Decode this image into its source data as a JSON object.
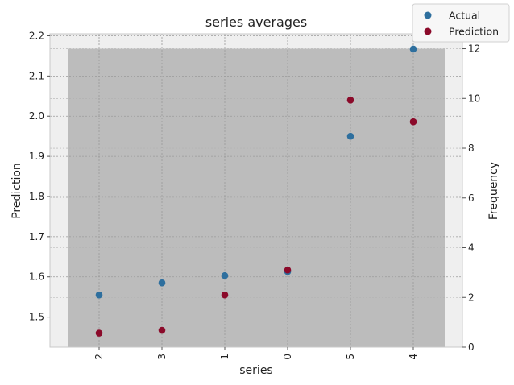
{
  "chart_data": {
    "type": "scatter",
    "title": "series averages",
    "xlabel": "series",
    "ylabel": "Prediction",
    "y2label": "Frequency",
    "categories": [
      "2",
      "3",
      "1",
      "0",
      "5",
      "4"
    ],
    "ylim": [
      1.425,
      2.205
    ],
    "yticks": [
      "1.5",
      "1.6",
      "1.7",
      "1.8",
      "1.9",
      "2.0",
      "2.1",
      "2.2"
    ],
    "y2lim": [
      0,
      12.6
    ],
    "y2ticks": [
      "0",
      "2",
      "4",
      "6",
      "8",
      "10",
      "12"
    ],
    "histogram_frequency": 12,
    "grid": true,
    "legend_position": "top-right",
    "series": [
      {
        "name": "Actual",
        "color": "#2e6f9e",
        "values": [
          1.555,
          1.585,
          1.603,
          1.613,
          1.95,
          2.167
        ]
      },
      {
        "name": "Prediction",
        "color": "#8b0a2a",
        "values": [
          1.46,
          1.467,
          1.555,
          1.617,
          2.04,
          1.986
        ]
      }
    ],
    "colors": {
      "histogram": "#bcbcbc",
      "plot_background": "#efefef"
    }
  }
}
